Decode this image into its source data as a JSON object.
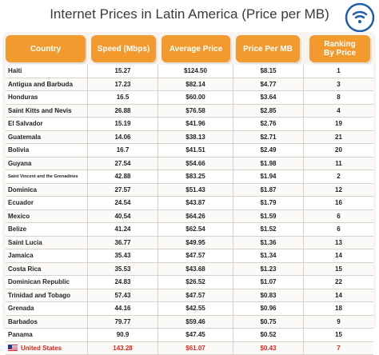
{
  "chart_data": {
    "type": "table",
    "title": "Internet Prices in Latin America (Price per MB)",
    "columns": [
      "Country",
      "Speed (Mbps)",
      "Average Price",
      "Price Per MB",
      "Ranking By Price"
    ],
    "rows": [
      [
        "Haiti",
        "15.27",
        "$124.50",
        "$8.15",
        "1"
      ],
      [
        "Antigua and Barbuda",
        "17.23",
        "$82.14",
        "$4.77",
        "3"
      ],
      [
        "Honduras",
        "16.5",
        "$60.00",
        "$3.64",
        "8"
      ],
      [
        "Saint Kitts and Nevis",
        "26.88",
        "$76.58",
        "$2.85",
        "4"
      ],
      [
        "El Salvador",
        "15.19",
        "$41.96",
        "$2.76",
        "19"
      ],
      [
        "Guatemala",
        "14.06",
        "$38.13",
        "$2.71",
        "21"
      ],
      [
        "Bolivia",
        "16.7",
        "$41.51",
        "$2.49",
        "20"
      ],
      [
        "Guyana",
        "27.54",
        "$54.66",
        "$1.98",
        "11"
      ],
      [
        "Saint Vincent and the Grenadines",
        "42.88",
        "$83.25",
        "$1.94",
        "2"
      ],
      [
        "Dominica",
        "27.57",
        "$51.43",
        "$1.87",
        "12"
      ],
      [
        "Ecuador",
        "24.54",
        "$43.87",
        "$1.79",
        "16"
      ],
      [
        "Mexico",
        "40.54",
        "$64.26",
        "$1.59",
        "6"
      ],
      [
        "Belize",
        "41.24",
        "$62.54",
        "$1.52",
        "6"
      ],
      [
        "Saint Lucia",
        "36.77",
        "$49.95",
        "$1.36",
        "13"
      ],
      [
        "Jamaica",
        "35.43",
        "$47.57",
        "$1.34",
        "14"
      ],
      [
        "Costa Rica",
        "35.53",
        "$43.68",
        "$1.23",
        "15"
      ],
      [
        "Dominican Republic",
        "24.83",
        "$26.52",
        "$1.07",
        "22"
      ],
      [
        "Trinidad and Tobago",
        "57.43",
        "$47.57",
        "$0.83",
        "14"
      ],
      [
        "Grenada",
        "44.16",
        "$42.55",
        "$0.96",
        "18"
      ],
      [
        "Barbados",
        "79.77",
        "$59.46",
        "$0.75",
        "9"
      ],
      [
        "Panama",
        "90.9",
        "$47.45",
        "$0.52",
        "15"
      ],
      [
        "United States",
        "143.28",
        "$61.07",
        "$0.43",
        "7"
      ]
    ],
    "highlight_row": "United States",
    "colors": {
      "header_bg": "#f39a2e",
      "header_text": "#ffffff",
      "highlight_text": "#e2241b"
    }
  },
  "icons": {
    "logo": "wifi-logo-icon",
    "us_flag": "us-flag-icon"
  }
}
